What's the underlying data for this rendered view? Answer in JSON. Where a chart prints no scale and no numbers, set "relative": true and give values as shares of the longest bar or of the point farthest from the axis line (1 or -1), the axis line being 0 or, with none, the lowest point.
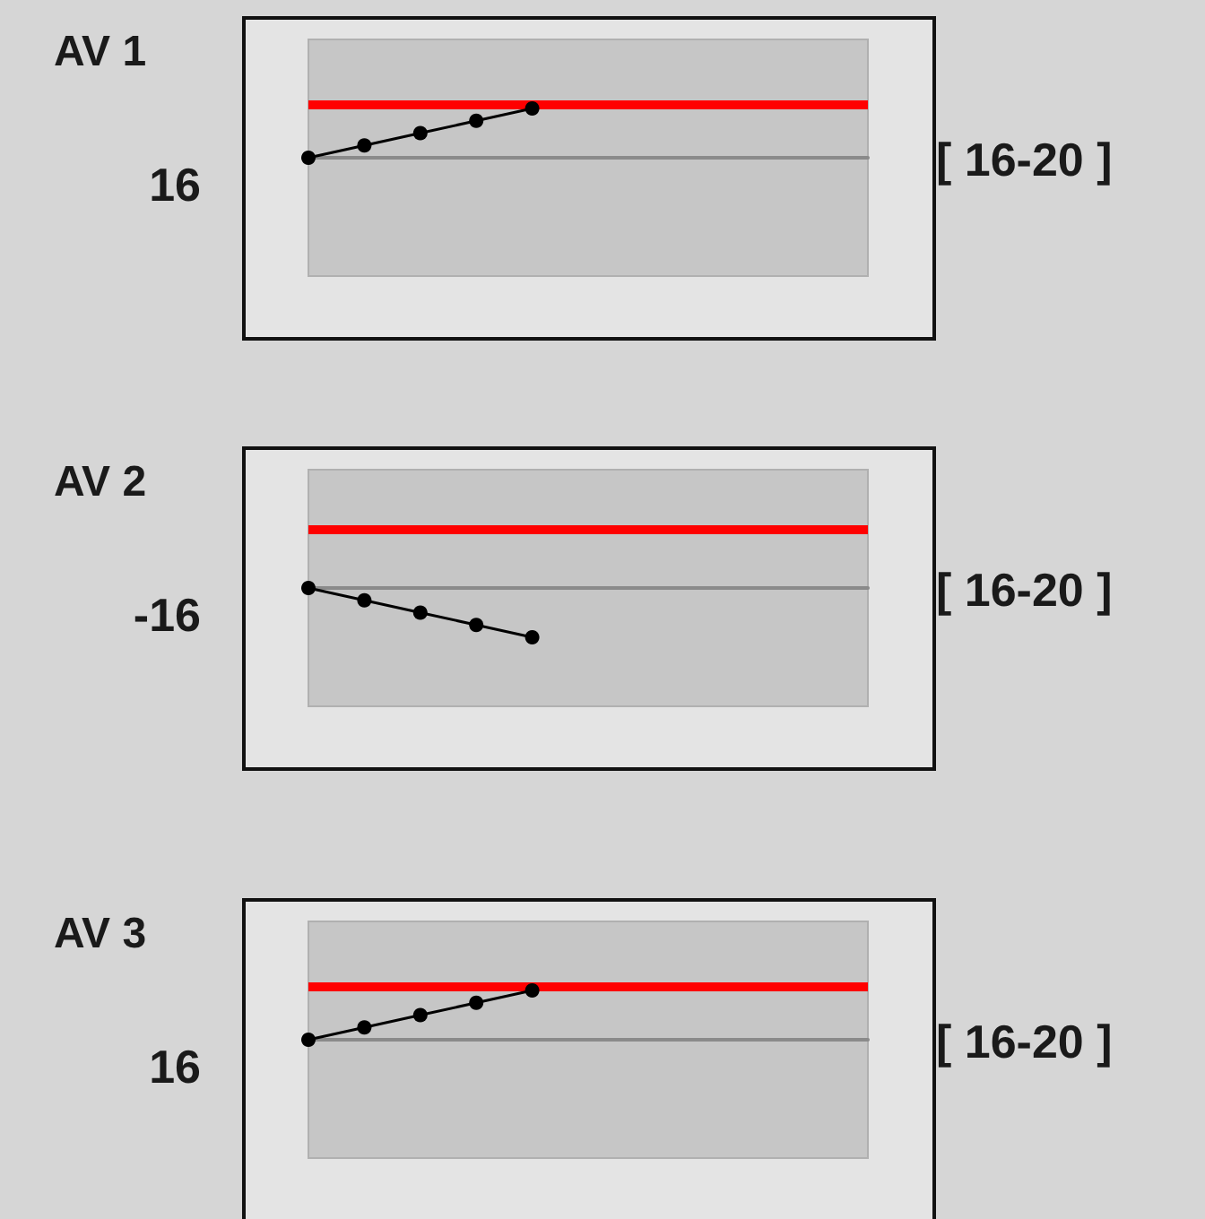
{
  "chart_data": [
    {
      "type": "line",
      "title": "AV 1",
      "relative": true,
      "categories": [
        null,
        null,
        null,
        null,
        null,
        null,
        null,
        null,
        null,
        null,
        null
      ],
      "series": [
        {
          "color": "#000000",
          "values": [
            0,
            0.25,
            0.5,
            0.75,
            1,
            null,
            null,
            null,
            null,
            null,
            null
          ]
        }
      ],
      "ref_lines": [
        {
          "axis": "y",
          "value": 1.07,
          "color": "#ff0000"
        }
      ],
      "annotations": [
        "16",
        "[ 16-20 ]"
      ],
      "marker": "circle",
      "line_style": "solid",
      "grid": false
    },
    {
      "type": "line",
      "title": "AV 2",
      "relative": true,
      "categories": [
        null,
        null,
        null,
        null,
        null,
        null,
        null,
        null,
        null,
        null,
        null
      ],
      "series": [
        {
          "color": "#000000",
          "values": [
            0,
            -0.25,
            -0.5,
            -0.75,
            -1,
            null,
            null,
            null,
            null,
            null,
            null
          ]
        }
      ],
      "ref_lines": [
        {
          "axis": "y",
          "value": 1.19,
          "color": "#ff0000"
        }
      ],
      "annotations": [
        "-16",
        "[ 16-20 ]"
      ],
      "marker": "circle",
      "line_style": "solid",
      "grid": false
    },
    {
      "type": "line",
      "title": "AV 3",
      "relative": true,
      "categories": [
        null,
        null,
        null,
        null,
        null,
        null,
        null,
        null,
        null,
        null,
        null
      ],
      "series": [
        {
          "color": "#000000",
          "values": [
            0,
            0.25,
            0.5,
            0.75,
            1,
            null,
            null,
            null,
            null,
            null,
            null
          ]
        }
      ],
      "ref_lines": [
        {
          "axis": "y",
          "value": 1.07,
          "color": "#ff0000"
        }
      ],
      "annotations": [
        "16",
        "[ 16-20 ]"
      ],
      "marker": "circle",
      "line_style": "solid",
      "grid": false
    }
  ]
}
